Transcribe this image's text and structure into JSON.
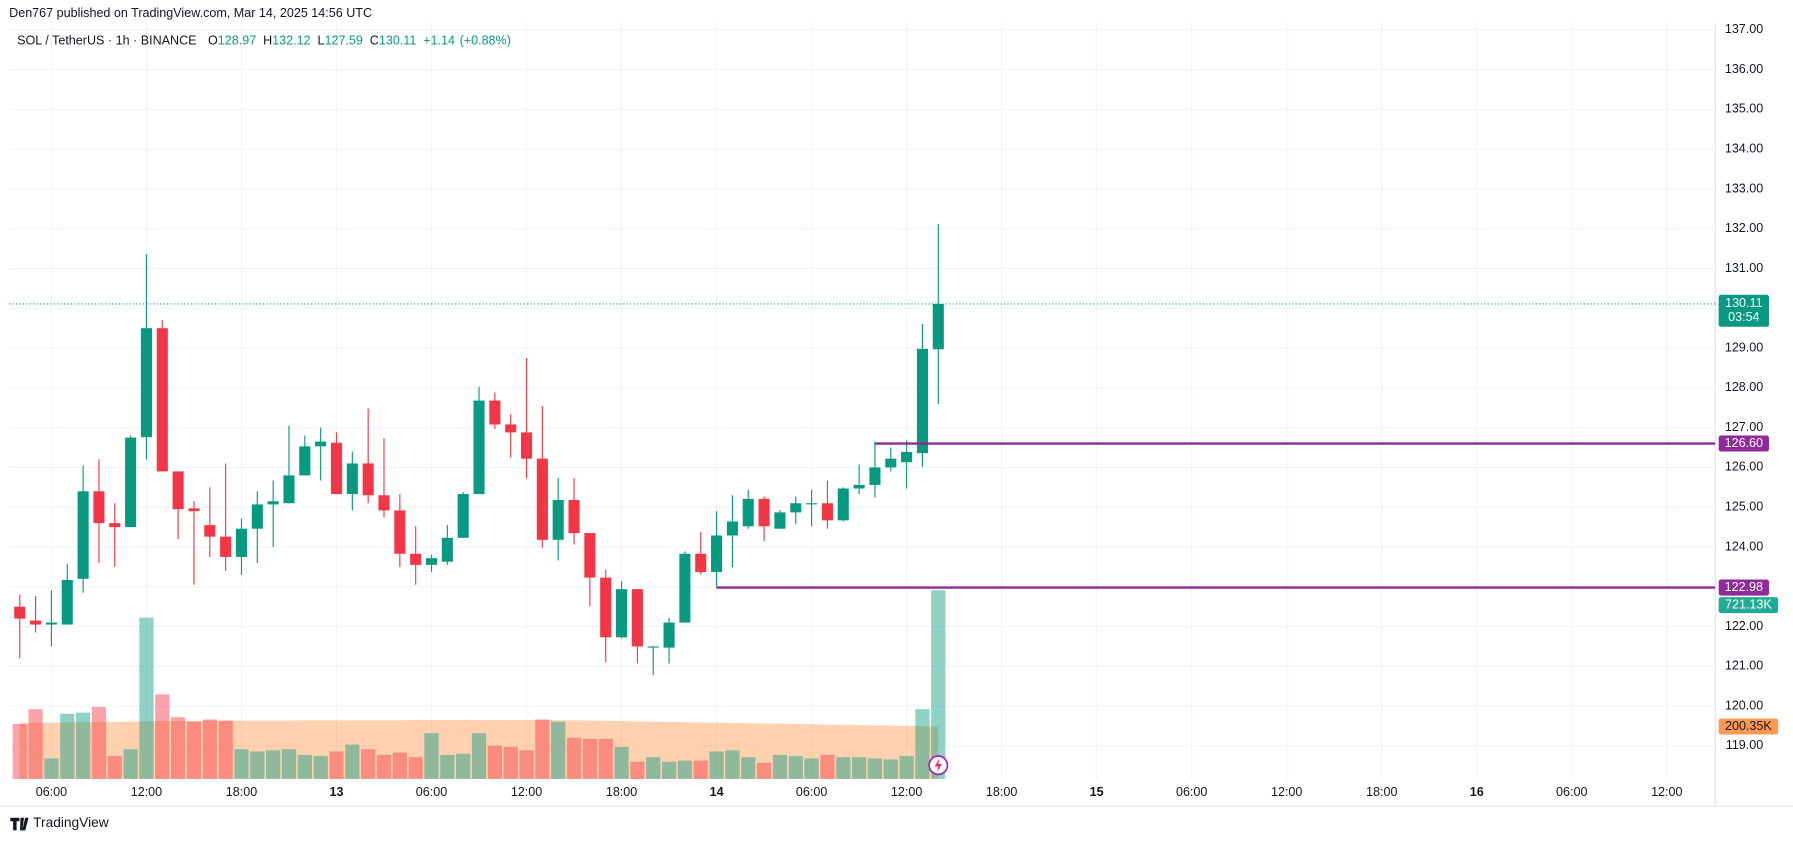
{
  "header": {
    "publisher": "Den767 published on TradingView.com, Mar 14, 2025 14:56 UTC"
  },
  "chart_data": {
    "type": "candlestick",
    "symbol": "SOL / TetherUS · 1h · BINANCE",
    "legend_keys": [
      "O",
      "H",
      "L",
      "C"
    ],
    "legend": {
      "open": 128.97,
      "high": 132.12,
      "low": 127.59,
      "close": 130.11,
      "change": {
        "value": 1.14,
        "label": "+1.14"
      },
      "change_percent": {
        "value": 0.88,
        "label": "(+0.88%)"
      }
    },
    "x": [
      4,
      5,
      6,
      7,
      8,
      9,
      10,
      11,
      12,
      13,
      14,
      15,
      16,
      17,
      18,
      19,
      20,
      21,
      22,
      23,
      24,
      25,
      26,
      27,
      28,
      29,
      30,
      31,
      32,
      33,
      34,
      35,
      36,
      37,
      38,
      39,
      40,
      41,
      42,
      43,
      44,
      45,
      46,
      47,
      48,
      49,
      50,
      51,
      52,
      53,
      54,
      55,
      56,
      57,
      58,
      59,
      60,
      61,
      62
    ],
    "open": [
      122.5,
      122.15,
      122.05,
      122.05,
      123.2,
      125.4,
      124.6,
      124.5,
      126.76,
      129.5,
      125.9,
      124.97,
      124.55,
      124.26,
      123.75,
      124.46,
      125.07,
      125.1,
      125.8,
      126.53,
      126.62,
      125.33,
      126.1,
      125.3,
      124.92,
      123.83,
      123.55,
      123.63,
      124.23,
      125.33,
      127.68,
      127.08,
      126.88,
      126.22,
      124.18,
      125.18,
      124.35,
      123.23,
      121.73,
      122.94,
      121.48,
      121.47,
      122.1,
      123.83,
      123.37,
      124.29,
      124.52,
      125.21,
      124.46,
      124.87,
      125.08,
      125.1,
      124.67,
      125.47,
      125.56,
      126.0,
      126.13,
      126.36,
      128.97
    ],
    "high": [
      122.8,
      122.77,
      122.9,
      123.57,
      126.05,
      126.2,
      125.1,
      126.8,
      131.36,
      129.7,
      125.9,
      125.15,
      125.5,
      126.1,
      124.72,
      125.4,
      125.67,
      127.05,
      126.8,
      127.0,
      126.88,
      126.4,
      127.48,
      126.73,
      125.33,
      124.52,
      123.8,
      124.55,
      125.38,
      128.03,
      127.88,
      127.34,
      128.75,
      127.54,
      125.73,
      125.73,
      124.35,
      123.43,
      123.14,
      122.94,
      121.5,
      122.22,
      123.89,
      124.38,
      124.9,
      125.3,
      125.44,
      125.27,
      124.93,
      125.27,
      125.44,
      125.67,
      125.5,
      126.07,
      126.65,
      126.5,
      126.68,
      129.61,
      132.12
    ],
    "low": [
      121.2,
      121.85,
      121.5,
      122.05,
      122.85,
      123.6,
      123.5,
      124.5,
      126.2,
      125.9,
      124.2,
      123.05,
      123.75,
      123.4,
      123.3,
      123.6,
      124.0,
      125.1,
      125.8,
      125.67,
      125.33,
      124.92,
      125.1,
      124.75,
      123.49,
      123.05,
      123.37,
      123.55,
      124.23,
      125.33,
      126.97,
      126.25,
      125.73,
      123.98,
      123.66,
      124.06,
      122.51,
      121.1,
      121.7,
      121.07,
      120.78,
      121.07,
      122.1,
      123.31,
      122.98,
      123.49,
      124.46,
      124.15,
      124.46,
      124.58,
      124.52,
      124.46,
      124.64,
      125.33,
      125.24,
      125.9,
      125.47,
      126.02,
      127.59
    ],
    "close": [
      122.2,
      122.05,
      122.1,
      123.17,
      125.4,
      124.6,
      124.5,
      126.75,
      129.5,
      125.9,
      124.95,
      124.9,
      124.26,
      123.75,
      124.46,
      125.07,
      125.15,
      125.8,
      126.53,
      126.65,
      125.33,
      126.1,
      125.3,
      124.92,
      123.83,
      123.55,
      123.72,
      124.23,
      125.33,
      127.68,
      127.08,
      126.88,
      126.22,
      124.18,
      125.18,
      124.35,
      123.23,
      121.73,
      122.94,
      121.5,
      121.5,
      122.1,
      123.83,
      123.37,
      124.29,
      124.64,
      125.21,
      124.52,
      124.87,
      125.1,
      125.1,
      124.67,
      125.47,
      125.56,
      126.0,
      126.22,
      126.39,
      128.98,
      130.11
    ],
    "volume": [
      209.8,
      266.6,
      78.7,
      249.1,
      253.5,
      275.3,
      87.4,
      113.6,
      616.3,
      323.4,
      236,
      218.5,
      227.3,
      222.9,
      113.6,
      104.9,
      109.3,
      113.6,
      91.8,
      87.4,
      104.9,
      131.1,
      113.6,
      91.8,
      100.5,
      83,
      174.8,
      91.8,
      96.2,
      174.8,
      126.7,
      122.4,
      109.3,
      227.3,
      218.5,
      157.3,
      153,
      153,
      122.4,
      65.6,
      83,
      65.6,
      69.9,
      69.9,
      104.9,
      109.3,
      83,
      61.2,
      91.8,
      87.4,
      78.7,
      91.8,
      83,
      83,
      78.7,
      74.3,
      87.4,
      266.6,
      721.13
    ],
    "volume_ma": [
      213,
      214,
      215,
      216,
      217,
      218,
      218,
      219,
      220,
      221,
      221,
      222,
      222,
      222,
      223,
      223,
      223,
      223,
      224,
      224,
      224,
      224,
      224,
      224,
      224,
      225,
      225,
      225,
      225,
      225,
      225,
      225,
      225,
      225,
      224,
      224,
      223,
      222,
      221,
      220,
      219,
      218,
      217,
      216,
      215,
      214,
      213,
      212,
      211,
      210,
      209,
      208,
      207,
      206,
      205,
      204,
      203,
      202,
      200.35
    ],
    "xlim": [
      3.33,
      111.06
    ],
    "xticks": [
      {
        "value": 6,
        "label": "06:00"
      },
      {
        "value": 12,
        "label": "12:00"
      },
      {
        "value": 18,
        "label": "18:00"
      },
      13,
      {
        "value": 30,
        "label": "06:00"
      },
      {
        "value": 36,
        "label": "12:00"
      },
      {
        "value": 42,
        "label": "18:00"
      },
      14,
      {
        "value": 54,
        "label": "06:00"
      },
      {
        "value": 60,
        "label": "12:00"
      },
      {
        "value": 66,
        "label": "18:00"
      },
      15,
      {
        "value": 78,
        "label": "06:00"
      },
      {
        "value": 84,
        "label": "12:00"
      },
      {
        "value": 90,
        "label": "18:00"
      },
      16,
      {
        "value": 102,
        "label": "06:00"
      },
      {
        "value": 108,
        "label": "12:00"
      }
    ],
    "xtick_day_values": [
      24,
      48,
      72,
      96
    ],
    "ylim": [
      118.17,
      137.17
    ],
    "yticks": [
      {
        "value": 119,
        "label": "119.00"
      },
      {
        "value": 120,
        "label": "120.00"
      },
      {
        "value": 121,
        "label": "121.00"
      },
      {
        "value": 122,
        "label": "122.00"
      },
      {
        "value": 123,
        "label": "123.00"
      },
      {
        "value": 124,
        "label": "124.00"
      },
      {
        "value": 125,
        "label": "125.00"
      },
      {
        "value": 126,
        "label": "126.00"
      },
      {
        "value": 127,
        "label": "127.00"
      },
      {
        "value": 128,
        "label": "128.00"
      },
      {
        "value": 129,
        "label": "129.00"
      },
      {
        "value": 130,
        "label": "130.00"
      },
      {
        "value": 131,
        "label": "131.00"
      },
      {
        "value": 132,
        "label": "132.00"
      },
      {
        "value": 133,
        "label": "133.00"
      },
      {
        "value": 134,
        "label": "134.00"
      },
      {
        "value": 135,
        "label": "135.00"
      },
      {
        "value": 136,
        "label": "136.00"
      },
      {
        "value": 137,
        "label": "137.00"
      }
    ],
    "volume_ylim": [
      0,
      2889
    ],
    "last_price": 130.11,
    "countdown": "03:54",
    "levels": [
      {
        "value": 126.6,
        "label": "126.60",
        "start_x": 58
      },
      {
        "value": 122.98,
        "label": "122.98",
        "start_x": 48
      }
    ],
    "volume_tag": {
      "value": 721.13,
      "label": "721.13K"
    },
    "volume_ma_tag": {
      "value": 200.35,
      "label": "200.35K"
    },
    "grid": true,
    "up_color": "#089981",
    "down_color": "#f23645",
    "level_color": "#8e2a9a",
    "ma_color": "#ff9850"
  },
  "footer": {
    "brand": "TradingView"
  }
}
